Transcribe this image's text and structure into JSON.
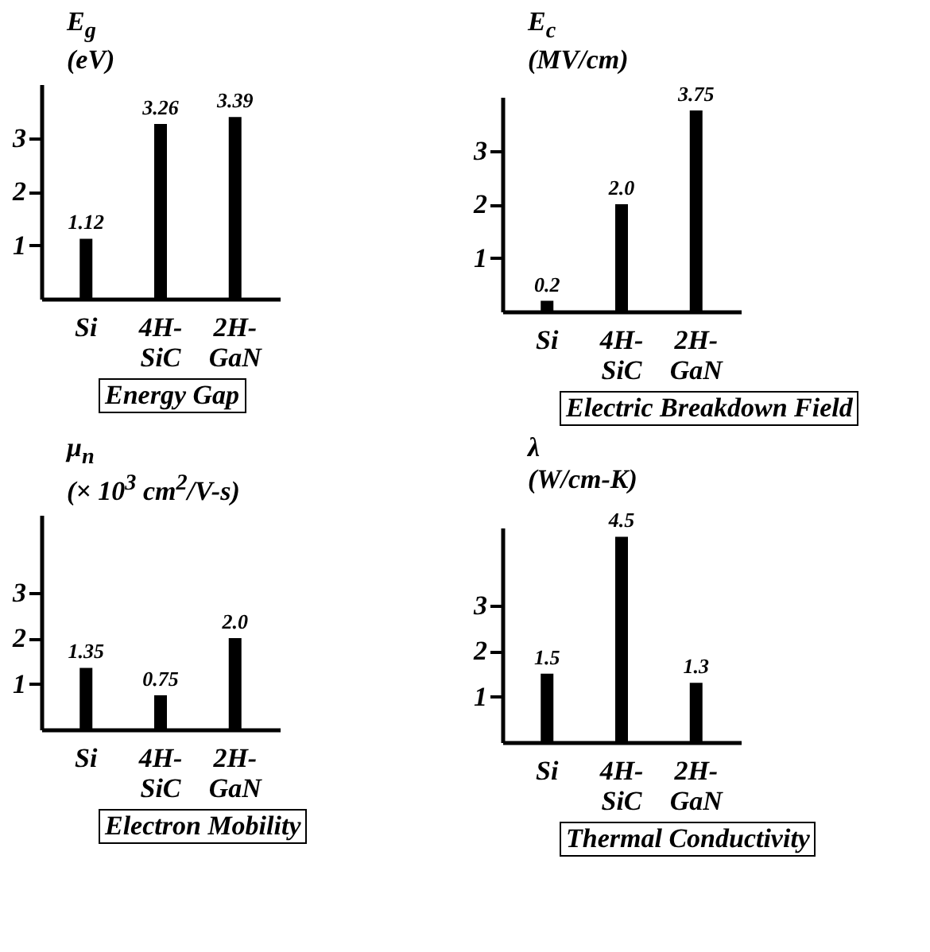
{
  "chart_data": [
    {
      "type": "bar",
      "title": "Energy Gap",
      "ylabel": "E$_{g}$\n(eV)",
      "categories": [
        "Si",
        "4H-SiC",
        "2H-GaN"
      ],
      "values": [
        1.12,
        3.26,
        3.39
      ],
      "value_labels": [
        "1.12",
        "3.26",
        "3.39"
      ],
      "color": "#000000",
      "ylim": [
        0,
        4
      ],
      "yticks": [
        1,
        2,
        3
      ]
    },
    {
      "type": "bar",
      "title": "Electric Breakdown Field",
      "ylabel": "E$_{c}$\n(MV/cm)",
      "categories": [
        "Si",
        "4H-SiC",
        "2H-GaN"
      ],
      "values": [
        0.2,
        2.0,
        3.75
      ],
      "value_labels": [
        "0.2",
        "2.0",
        "3.75"
      ],
      "color": "#000000",
      "ylim": [
        0,
        4
      ],
      "yticks": [
        1,
        2,
        3
      ]
    },
    {
      "type": "bar",
      "title": "Electron Mobility",
      "ylabel": "μ$_{n}$\n(× 10$^{3}$ cm$^{2}$/V-s)",
      "categories": [
        "Si",
        "4H-SiC",
        "2H-GaN"
      ],
      "values": [
        1.35,
        0.75,
        2.0
      ],
      "value_labels": [
        "1.35",
        "0.75",
        "2.0"
      ],
      "color": "#000000",
      "ylim": [
        0,
        4.7
      ],
      "yticks": [
        1,
        2,
        3
      ]
    },
    {
      "type": "bar",
      "title": "Thermal Conductivity",
      "ylabel": "λ\n(W/cm-K)",
      "categories": [
        "Si",
        "4H-SiC",
        "2H-GaN"
      ],
      "values": [
        1.5,
        4.5,
        1.3
      ],
      "value_labels": [
        "1.5",
        "4.5",
        "1.3"
      ],
      "color": "#000000",
      "ylim": [
        0,
        4.7
      ],
      "yticks": [
        1,
        2,
        3
      ]
    }
  ]
}
